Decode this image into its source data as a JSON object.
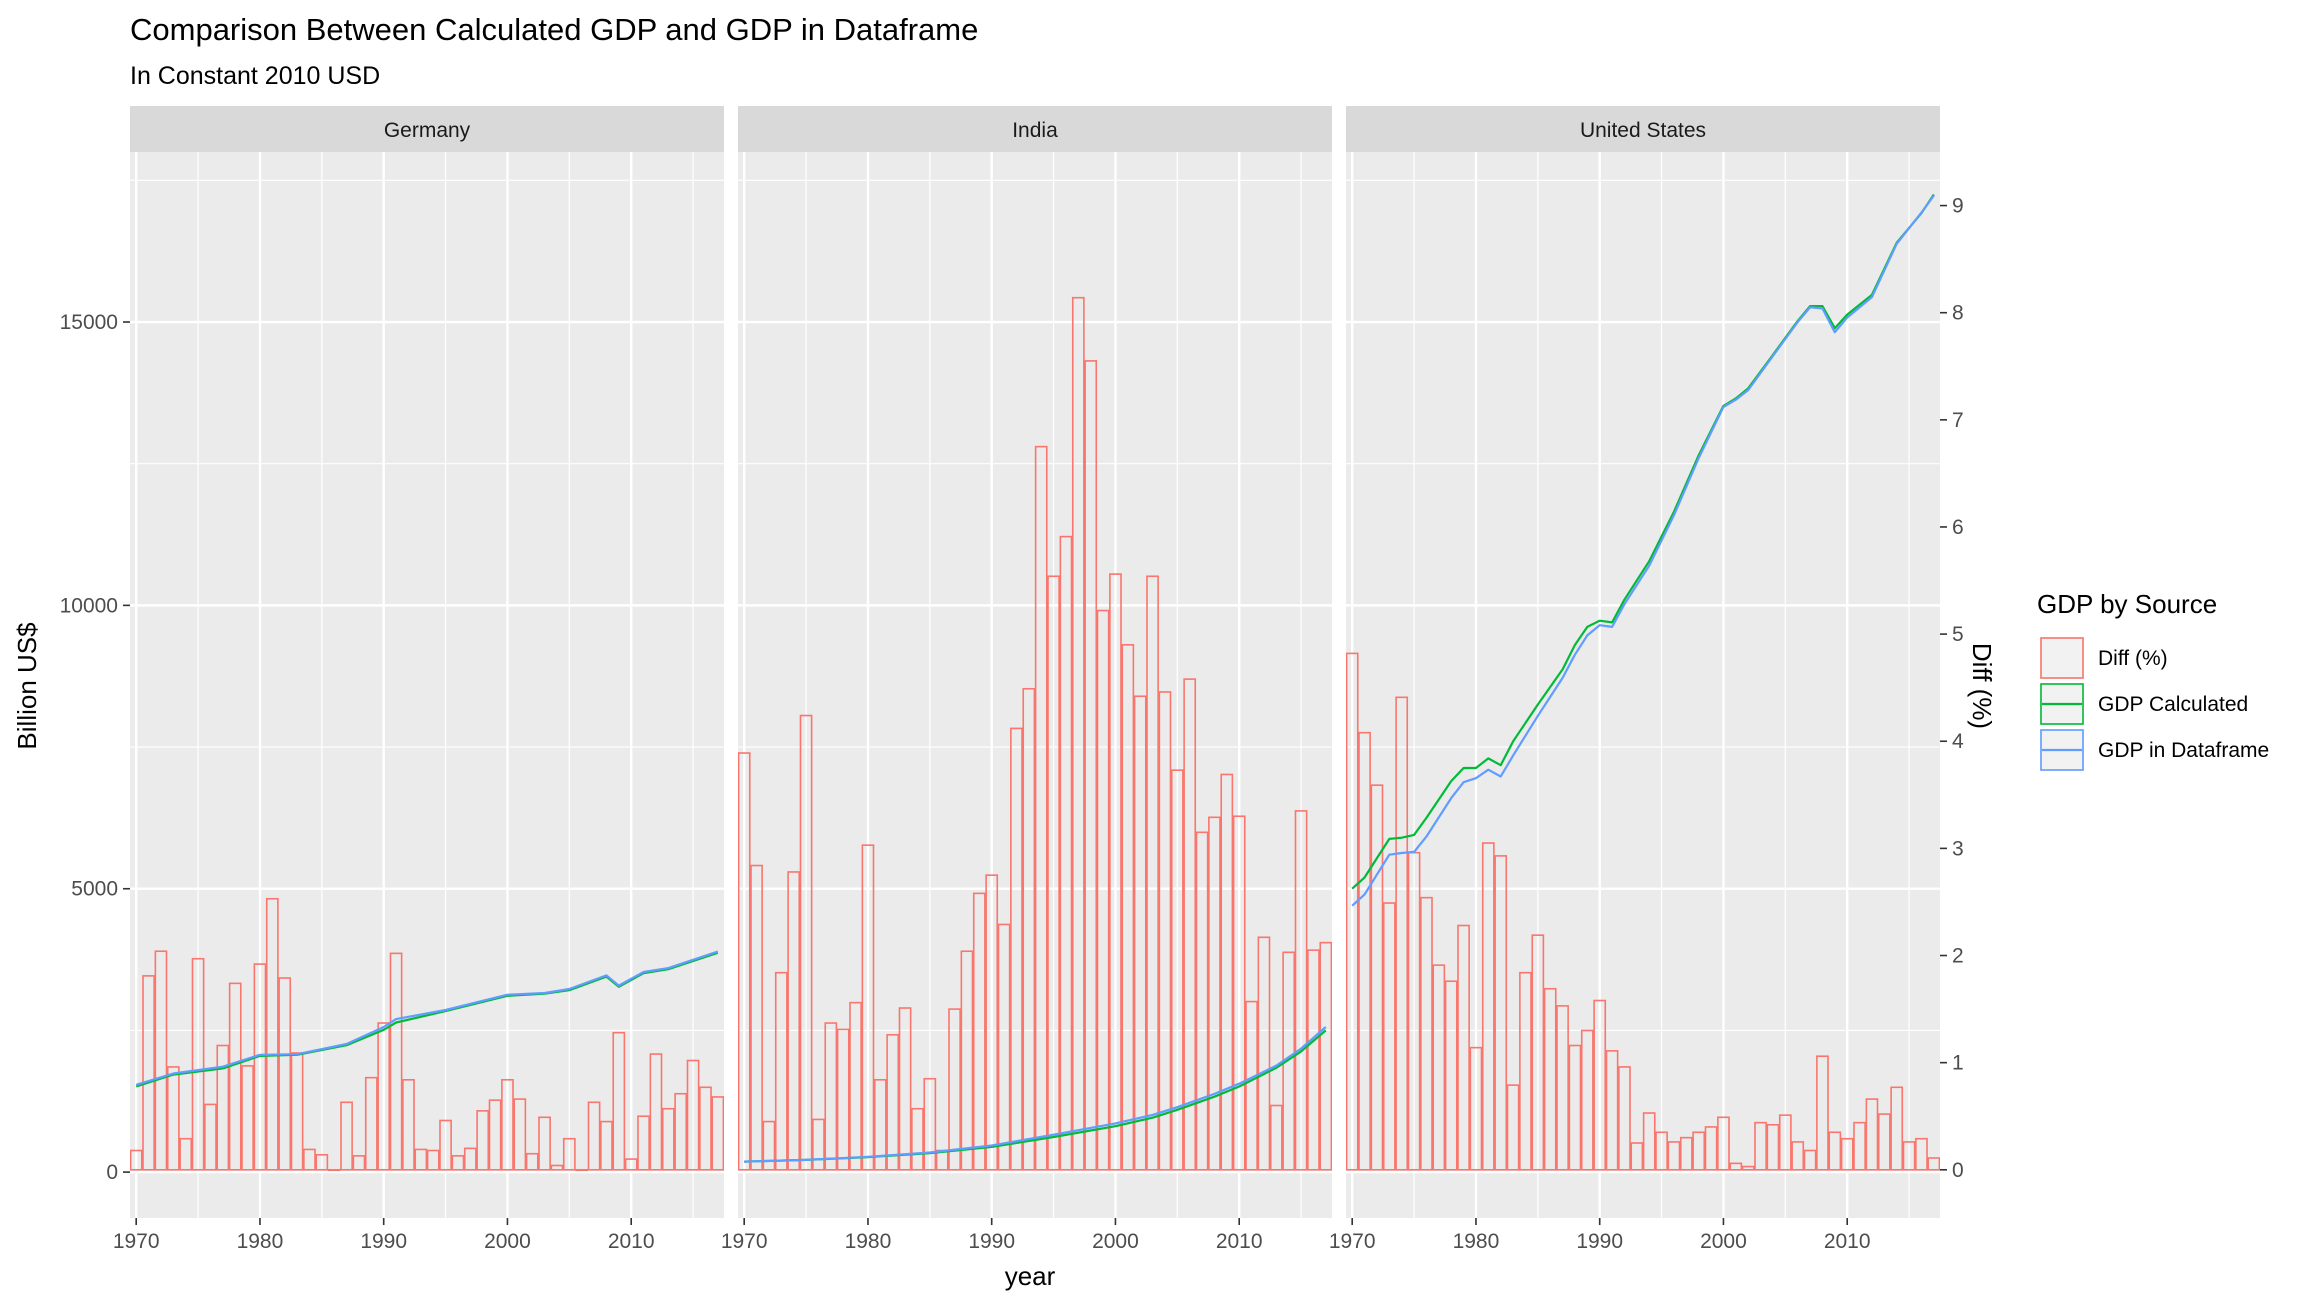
{
  "chart_data": {
    "type": "bar",
    "title": "Comparison Between Calculated GDP and GDP in Dataframe",
    "subtitle": "In Constant 2010 USD",
    "xlabel": "year",
    "ylabel": "Billion US$",
    "ylabel_right": "Diff (%)",
    "xlim": [
      1969.5,
      2017.5
    ],
    "ylim": [
      -810,
      18000
    ],
    "ylim_right": [
      -0.45,
      9.5
    ],
    "x_ticks": [
      1970,
      1980,
      1990,
      2000,
      2010
    ],
    "y_ticks": [
      0,
      5000,
      10000,
      15000
    ],
    "y_ticks_right": [
      0,
      1,
      2,
      3,
      4,
      5,
      6,
      7,
      8,
      9
    ],
    "grid": true,
    "legend": {
      "title": "GDP by Source",
      "position": "right",
      "entries": [
        {
          "label": "Diff (%)",
          "color": "#F8766D",
          "kind": "bar"
        },
        {
          "label": "GDP Calculated",
          "color": "#00BA38",
          "kind": "line"
        },
        {
          "label": "GDP in Dataframe",
          "color": "#619CFF",
          "kind": "line"
        }
      ]
    },
    "colors": {
      "diff": "#F8766D",
      "calculated": "#00BA38",
      "dataframe": "#619CFF",
      "panel_bg": "#EBEBEB",
      "strip_bg": "#D9D9D9",
      "grid": "#FFFFFF"
    },
    "panels": [
      {
        "name": "Germany",
        "diff_pct": {
          "x": [
            1970,
            1971,
            1972,
            1973,
            1974,
            1975,
            1976,
            1977,
            1978,
            1979,
            1980,
            1981,
            1982,
            1983,
            1984,
            1985,
            1986,
            1987,
            1988,
            1989,
            1990,
            1991,
            1992,
            1993,
            1994,
            1995,
            1996,
            1997,
            1998,
            1999,
            2000,
            2001,
            2002,
            2003,
            2004,
            2005,
            2006,
            2007,
            2008,
            2009,
            2010,
            2011,
            2012,
            2013,
            2014,
            2015,
            2016,
            2017
          ],
          "y": [
            0.18,
            1.81,
            2.04,
            0.96,
            0.29,
            1.97,
            0.61,
            1.16,
            1.74,
            0.97,
            1.92,
            2.53,
            1.79,
            1.09,
            0.19,
            0.14,
            0,
            0.63,
            0.13,
            0.86,
            1.37,
            2.02,
            0.84,
            0.19,
            0.18,
            0.46,
            0.13,
            0.2,
            0.55,
            0.65,
            0.84,
            0.66,
            0.15,
            0.49,
            0.04,
            0.29,
            0,
            0.63,
            0.45,
            1.28,
            0.1,
            0.5,
            1.08,
            0.57,
            0.71,
            1.02,
            0.77,
            0.68
          ]
        },
        "gdp_calculated": {
          "x": [
            1970,
            1973,
            1977,
            1980,
            1983,
            1987,
            1990,
            1991,
            1995,
            2000,
            2003,
            2005,
            2008,
            2009,
            2011,
            2013,
            2017
          ],
          "y": [
            1510,
            1720,
            1830,
            2050,
            2070,
            2240,
            2510,
            2640,
            2840,
            3110,
            3150,
            3210,
            3450,
            3270,
            3510,
            3580,
            3870
          ]
        },
        "gdp_dataframe": {
          "x": [
            1970,
            1973,
            1977,
            1980,
            1983,
            1987,
            1990,
            1991,
            1995,
            2000,
            2003,
            2005,
            2008,
            2009,
            2011,
            2013,
            2017
          ],
          "y": [
            1540,
            1740,
            1860,
            2070,
            2080,
            2260,
            2560,
            2700,
            2860,
            3130,
            3160,
            3230,
            3470,
            3290,
            3530,
            3600,
            3890
          ]
        }
      },
      {
        "name": "India",
        "diff_pct": {
          "x": [
            1970,
            1971,
            1972,
            1973,
            1974,
            1975,
            1976,
            1977,
            1978,
            1979,
            1980,
            1981,
            1982,
            1983,
            1984,
            1985,
            1986,
            1987,
            1988,
            1989,
            1990,
            1991,
            1992,
            1993,
            1994,
            1995,
            1996,
            1997,
            1998,
            1999,
            2000,
            2001,
            2002,
            2003,
            2004,
            2005,
            2006,
            2007,
            2008,
            2009,
            2010,
            2011,
            2012,
            2013,
            2014,
            2015,
            2016,
            2017
          ],
          "y": [
            3.89,
            2.84,
            0.45,
            1.84,
            2.78,
            4.24,
            0.47,
            1.37,
            1.31,
            1.56,
            3.03,
            0.84,
            1.26,
            1.51,
            0.57,
            0.85,
            0.18,
            1.5,
            2.04,
            2.58,
            2.75,
            2.29,
            4.12,
            4.49,
            6.75,
            5.54,
            5.91,
            8.14,
            7.55,
            5.22,
            5.56,
            4.9,
            4.42,
            5.54,
            4.46,
            3.73,
            4.58,
            3.15,
            3.29,
            3.69,
            3.3,
            1.57,
            2.17,
            0.6,
            2.03,
            3.35,
            2.05,
            2.12
          ]
        },
        "gdp_calculated": {
          "x": [
            1970,
            1975,
            1980,
            1985,
            1990,
            1995,
            2000,
            2003,
            2005,
            2008,
            2010,
            2013,
            2015,
            2017
          ],
          "y": [
            185,
            215,
            265,
            335,
            445,
            620,
            810,
            960,
            1100,
            1330,
            1510,
            1840,
            2130,
            2500
          ]
        },
        "gdp_dataframe": {
          "x": [
            1970,
            1975,
            1980,
            1985,
            1990,
            1995,
            2000,
            2003,
            2005,
            2008,
            2010,
            2013,
            2015,
            2017
          ],
          "y": [
            185,
            215,
            270,
            345,
            470,
            660,
            860,
            1010,
            1145,
            1380,
            1560,
            1880,
            2180,
            2560
          ]
        }
      },
      {
        "name": "United States",
        "diff_pct": {
          "x": [
            1970,
            1971,
            1972,
            1973,
            1974,
            1975,
            1976,
            1977,
            1978,
            1979,
            1980,
            1981,
            1982,
            1983,
            1984,
            1985,
            1986,
            1987,
            1988,
            1989,
            1990,
            1991,
            1992,
            1993,
            1994,
            1995,
            1996,
            1997,
            1998,
            1999,
            2000,
            2001,
            2002,
            2003,
            2004,
            2005,
            2006,
            2007,
            2008,
            2009,
            2010,
            2011,
            2012,
            2013,
            2014,
            2015,
            2016,
            2017
          ],
          "y": [
            4.82,
            4.08,
            3.59,
            2.49,
            4.41,
            2.96,
            2.54,
            1.91,
            1.76,
            2.28,
            1.14,
            3.05,
            2.93,
            0.79,
            1.84,
            2.19,
            1.69,
            1.53,
            1.16,
            1.3,
            1.58,
            1.11,
            0.96,
            0.25,
            0.53,
            0.35,
            0.26,
            0.3,
            0.35,
            0.4,
            0.49,
            0.06,
            0.03,
            0.44,
            0.42,
            0.51,
            0.26,
            0.18,
            1.06,
            0.35,
            0.29,
            0.44,
            0.66,
            0.52,
            0.77,
            0.26,
            0.29,
            0.11
          ]
        },
        "gdp_calculated": {
          "x": [
            1970,
            1971,
            1973,
            1974,
            1975,
            1976,
            1978,
            1979,
            1980,
            1981,
            1982,
            1983,
            1985,
            1987,
            1988,
            1989,
            1990,
            1991,
            1992,
            1994,
            1996,
            1998,
            2000,
            2001,
            2002,
            2004,
            2006,
            2007,
            2008,
            2009,
            2010,
            2012,
            2014,
            2016,
            2017
          ],
          "y": [
            5000,
            5200,
            5880,
            5900,
            5950,
            6250,
            6900,
            7130,
            7130,
            7300,
            7180,
            7600,
            8250,
            8870,
            9300,
            9620,
            9730,
            9700,
            10100,
            10780,
            11650,
            12650,
            13520,
            13650,
            13830,
            14420,
            15020,
            15280,
            15280,
            14890,
            15130,
            15480,
            16400,
            16920,
            17250
          ]
        },
        "gdp_dataframe": {
          "x": [
            1970,
            1971,
            1973,
            1974,
            1975,
            1976,
            1978,
            1979,
            1980,
            1981,
            1982,
            1983,
            1985,
            1987,
            1988,
            1989,
            1990,
            1991,
            1992,
            1994,
            1996,
            1998,
            2000,
            2001,
            2002,
            2004,
            2006,
            2007,
            2008,
            2009,
            2010,
            2012,
            2014,
            2016,
            2017
          ],
          "y": [
            4700,
            4900,
            5600,
            5630,
            5650,
            5920,
            6600,
            6880,
            6950,
            7100,
            6980,
            7350,
            8050,
            8720,
            9130,
            9470,
            9650,
            9620,
            10020,
            10700,
            11590,
            12600,
            13500,
            13630,
            13800,
            14400,
            15000,
            15260,
            15240,
            14820,
            15080,
            15440,
            16380,
            16930,
            17230
          ]
        }
      }
    ]
  }
}
